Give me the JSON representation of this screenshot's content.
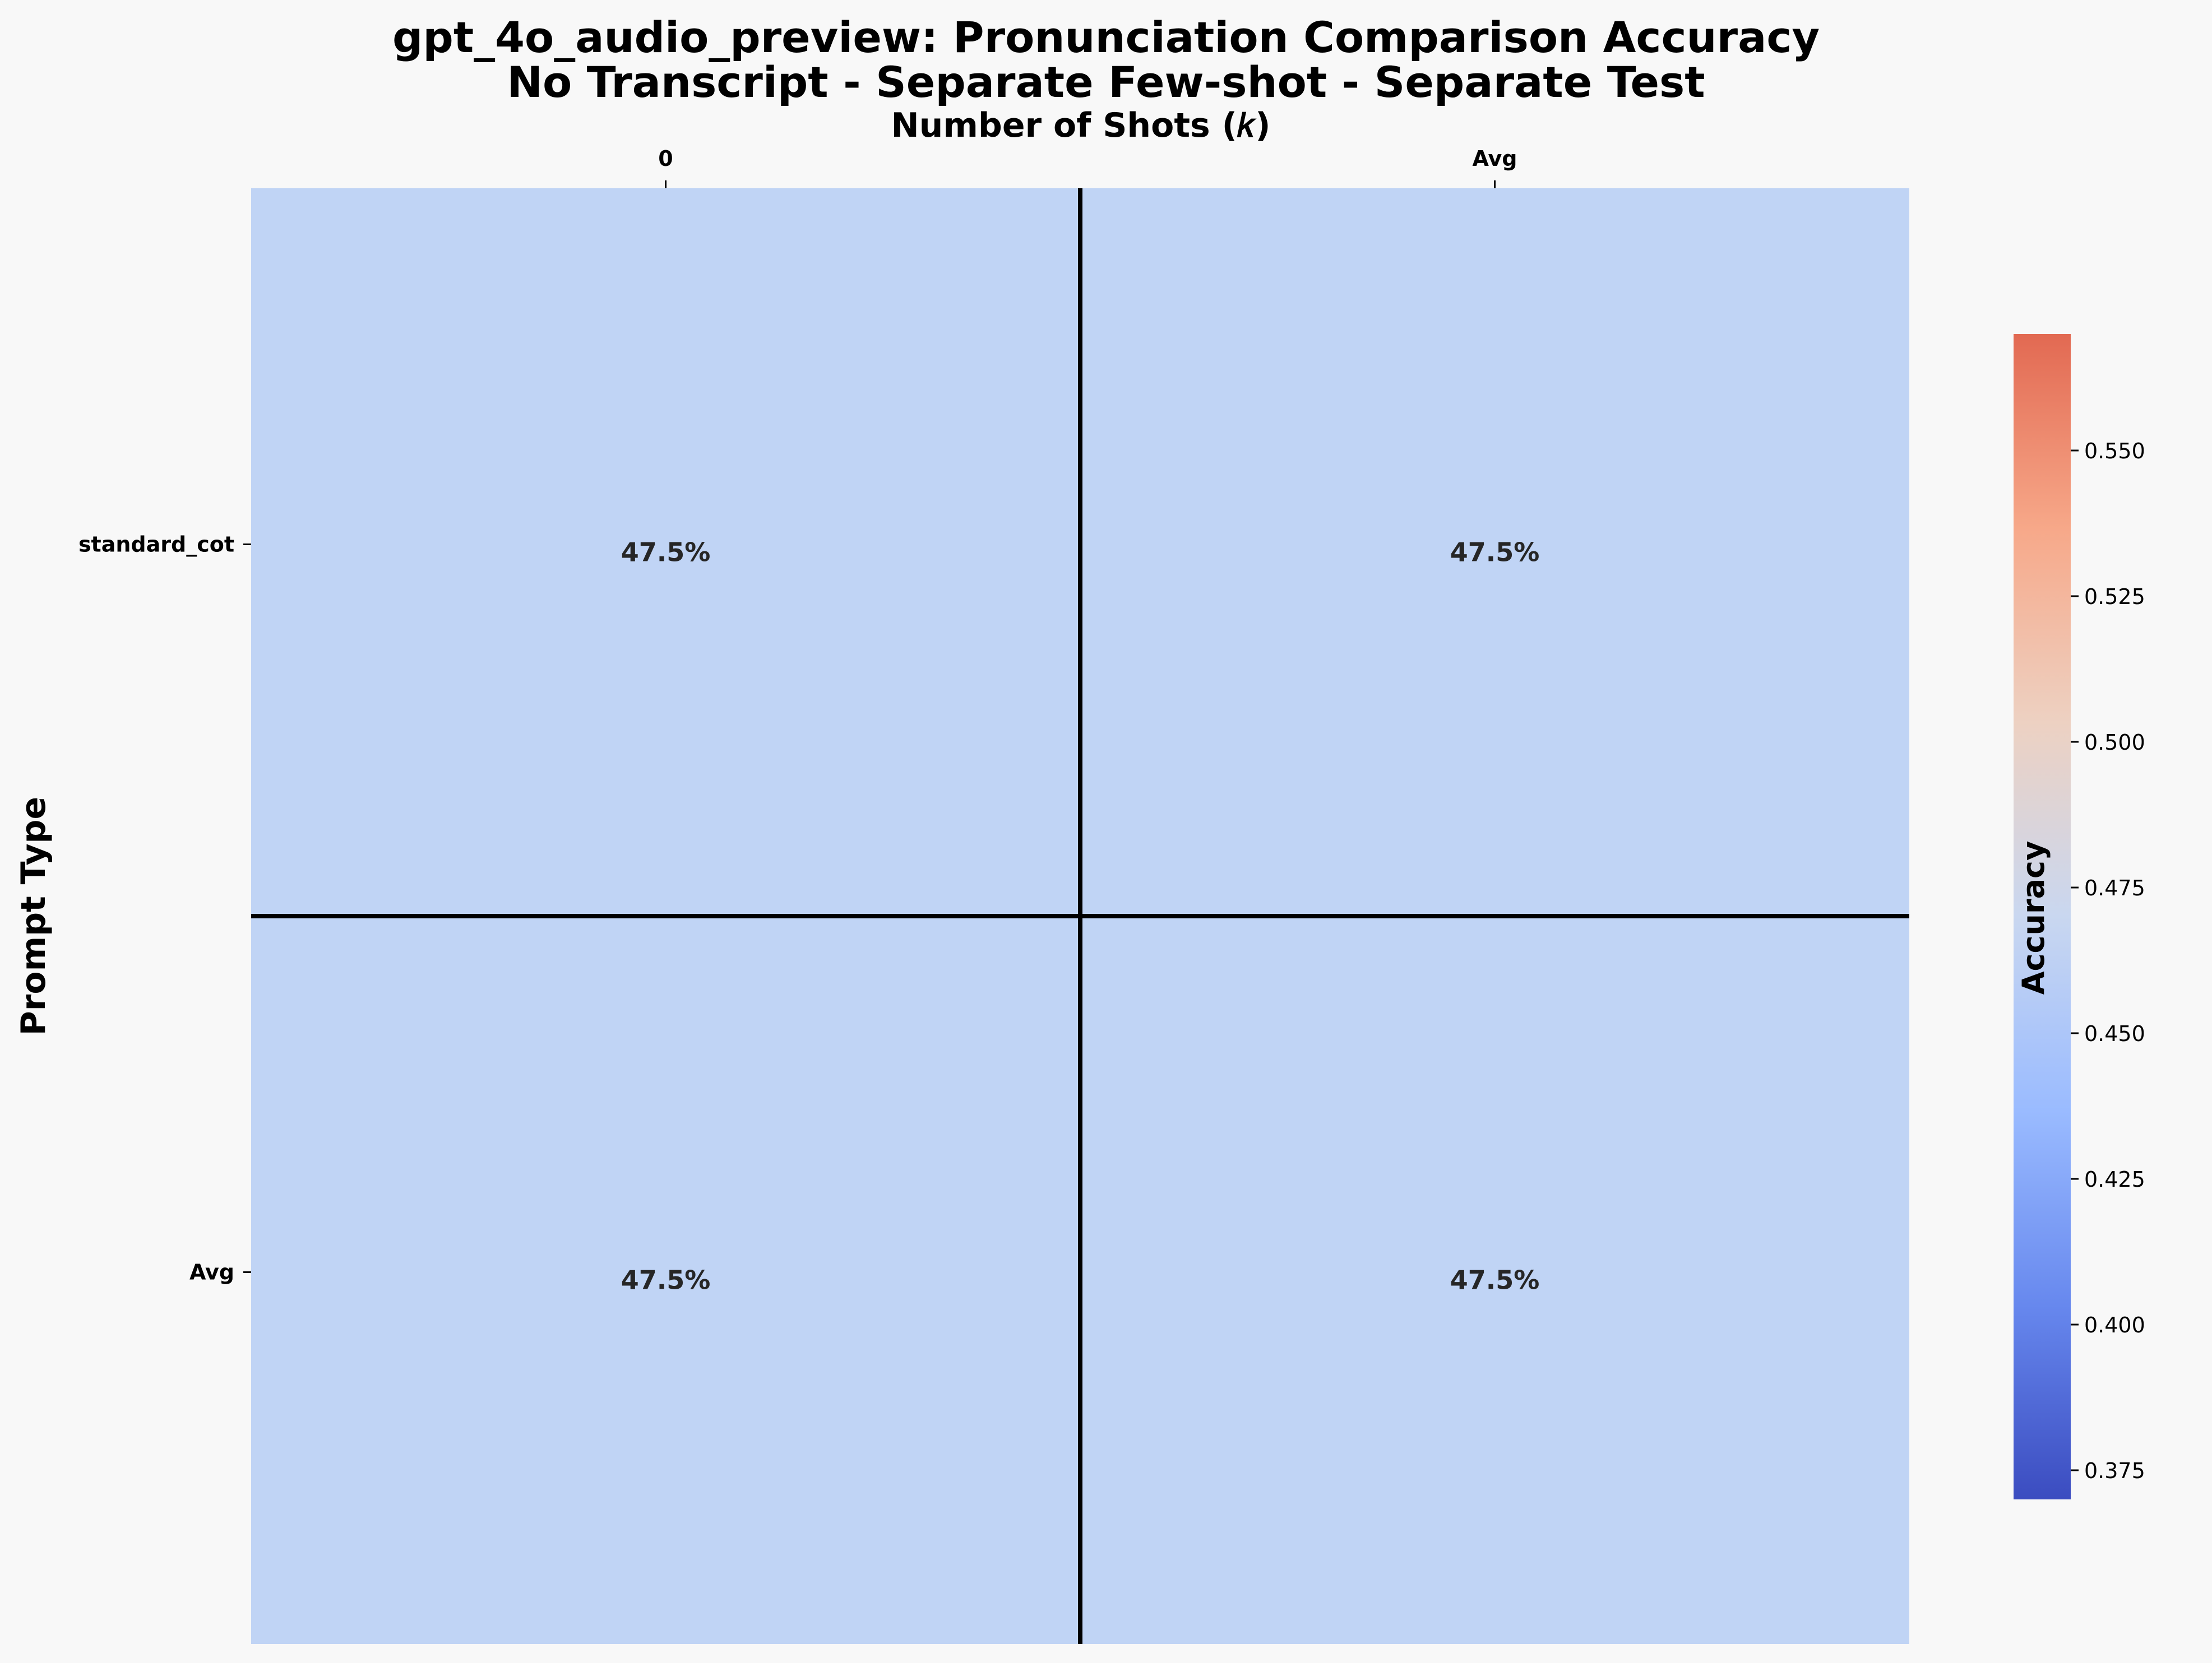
{
  "chart_data": {
    "type": "heatmap",
    "title": "gpt_4o_audio_preview: Pronunciation Comparison Accuracy",
    "subtitle": "No Transcript - Separate Few-shot - Separate Test",
    "xlabel": "Number of Shots (𝑘)",
    "ylabel": "Prompt Type",
    "x_categories": [
      "0",
      "Avg"
    ],
    "y_categories": [
      "standard_cot",
      "Avg"
    ],
    "values": [
      [
        0.475,
        0.475
      ],
      [
        0.475,
        0.475
      ]
    ],
    "cell_labels": [
      [
        "47.5%",
        "47.5%"
      ],
      [
        "47.5%",
        "47.5%"
      ]
    ],
    "x_axis_position": "top",
    "colorbar": {
      "label": "Accuracy",
      "colormap": "coolwarm",
      "vmin": 0.37,
      "vmax": 0.57,
      "ticks": [
        "0.375",
        "0.400",
        "0.425",
        "0.450",
        "0.475",
        "0.500",
        "0.525",
        "0.550"
      ]
    },
    "grid": false
  },
  "colors": {
    "background": "#f8f8f8",
    "cell": "#c0d4f5",
    "separator": "#000000",
    "cell_text": "#262626",
    "colormap_stops": [
      "#3b4cc0",
      "#6788ee",
      "#9abbff",
      "#c9d7f0",
      "#edd1c2",
      "#f7a889",
      "#e26952"
    ]
  }
}
